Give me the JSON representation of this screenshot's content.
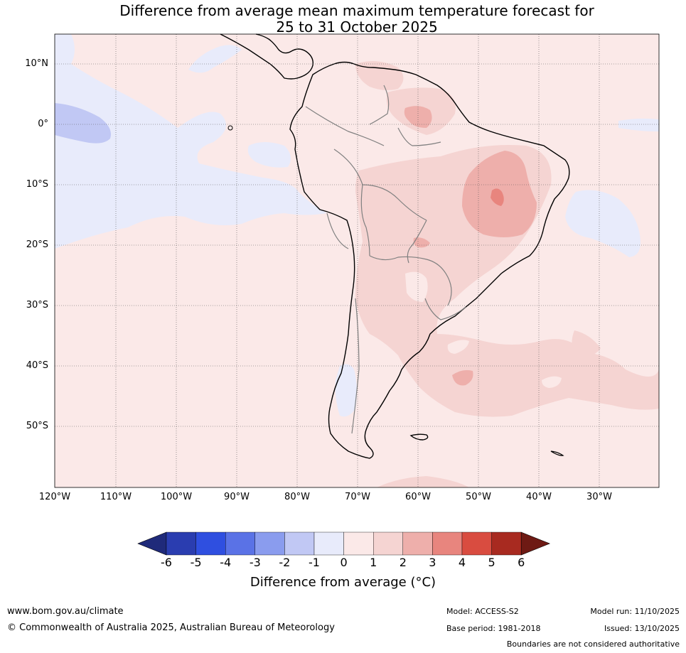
{
  "title_line1": "Difference from average mean maximum temperature forecast for",
  "title_line2": "25 to 31 October 2025",
  "lat_labels": [
    "10°N",
    "0°",
    "10°S",
    "20°S",
    "30°S",
    "40°S",
    "50°S"
  ],
  "lon_labels": [
    "120°W",
    "110°W",
    "100°W",
    "90°W",
    "80°W",
    "70°W",
    "60°W",
    "50°W",
    "40°W",
    "30°W"
  ],
  "colorbar": {
    "title": "Difference from average (°C)",
    "ticks": [
      "-6",
      "-5",
      "-4",
      "-3",
      "-2",
      "-1",
      "0",
      "1",
      "2",
      "3",
      "4",
      "5",
      "6"
    ],
    "colors": [
      "#1f2a7a",
      "#2a3db0",
      "#2f4fe0",
      "#5a72e6",
      "#8a9cee",
      "#c1c8f4",
      "#e8ebfb",
      "#fbe9e8",
      "#f5d4d2",
      "#eeafab",
      "#e8857e",
      "#d94c40",
      "#a82a20",
      "#6e1a14"
    ]
  },
  "footer": {
    "website": "www.bom.gov.au/climate",
    "copyright": "© Commonwealth of Australia 2025, Australian Bureau of Meteorology",
    "model": "Model: ACCESS-S2",
    "base_period": "Base period: 1981-2018",
    "model_run": "Model run: 11/10/2025",
    "issued": "Issued: 13/10/2025",
    "disclaimer": "Boundaries are not considered authoritative"
  }
}
